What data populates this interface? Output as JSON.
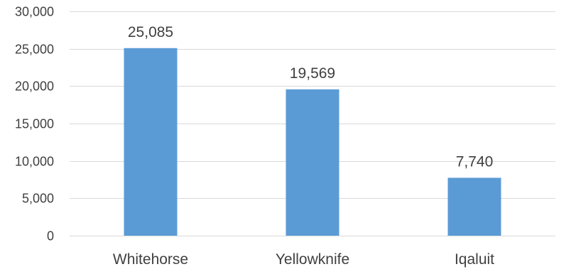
{
  "chart_data": {
    "type": "bar",
    "title": "",
    "xlabel": "",
    "ylabel": "",
    "categories": [
      "Whitehorse",
      "Yellowknife",
      "Iqaluit"
    ],
    "values": [
      25085,
      19569,
      7740
    ],
    "value_labels": [
      "25,085",
      "19,569",
      "7,740"
    ],
    "ylim": [
      0,
      30000
    ],
    "yticks": [
      0,
      5000,
      10000,
      15000,
      20000,
      25000,
      30000
    ],
    "ytick_labels": [
      "0",
      "5,000",
      "10,000",
      "15,000",
      "20,000",
      "25,000",
      "30,000"
    ],
    "grid": true,
    "legend": "none",
    "colors": {
      "bar": "#5b9bd5",
      "grid": "#d9d9d9",
      "text": "#404040"
    }
  }
}
